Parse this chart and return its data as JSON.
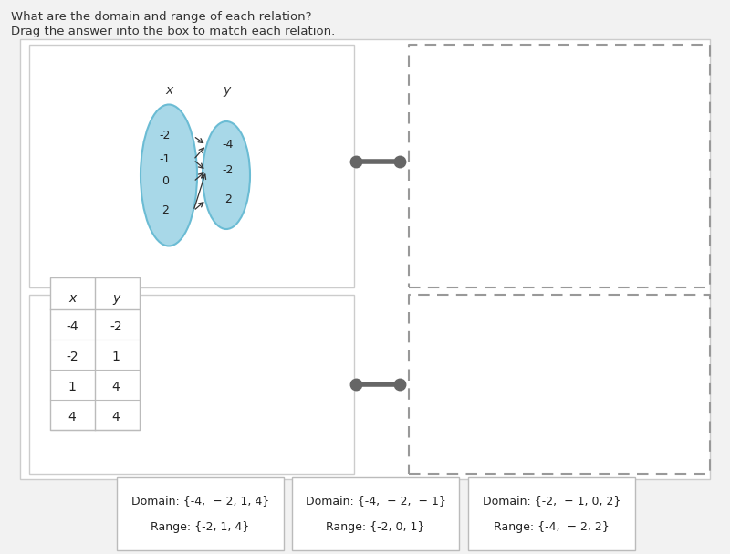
{
  "title_line1": "What are the domain and range of each relation?",
  "title_line2": "Drag the answer into the box to match each relation.",
  "bg_color": "#f2f2f2",
  "ellipse_fill": "#a8d8e8",
  "ellipse_edge": "#6bbcd4",
  "mapping_x_values": [
    "-2",
    "-1",
    "0",
    "2"
  ],
  "mapping_y_values": [
    "-4",
    "-2",
    "2"
  ],
  "table_rows": [
    [
      "-4",
      "-2"
    ],
    [
      "-2",
      "1"
    ],
    [
      "1",
      "4"
    ],
    [
      "4",
      "4"
    ]
  ],
  "answer_boxes": [
    {
      "domain_text": "Domain: {-4,  − 2, 1, 4}",
      "range_text": "Range: {-2, 1, 4}"
    },
    {
      "domain_text": "Domain: {-4,  − 2,  − 1}",
      "range_text": "Range: {-2, 0, 1}"
    },
    {
      "domain_text": "Domain: {-2,  − 1, 0, 2}",
      "range_text": "Range: {-4,  − 2, 2}"
    }
  ],
  "connector_color": "#666666",
  "dashed_color": "#999999",
  "panel_border": "#cccccc",
  "table_border": "#bbbbbb"
}
